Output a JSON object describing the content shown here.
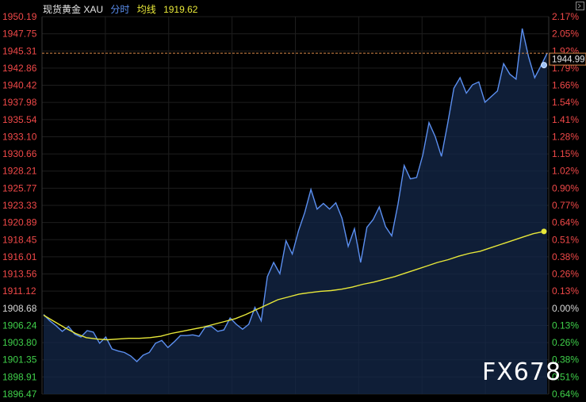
{
  "header": {
    "instrument": "现货黄金 XAU",
    "mode": "分时",
    "avg_label": "均线",
    "avg_value": "1919.62"
  },
  "watermark": "FX678",
  "price_tag": "1944.99",
  "colors": {
    "background": "#000000",
    "price_line": "#5b8ff0",
    "price_fill": "#14284a",
    "avg_line": "#e8e839",
    "up_text": "#f04848",
    "down_text": "#3fd04a",
    "neutral_text": "#d8d8d8",
    "grid": "#1e1e1e",
    "ref_line": "#d98a4a",
    "tag_text": "#e8e8e8"
  },
  "chart_data": {
    "type": "line",
    "y_ticks": [
      "1950.19",
      "1947.75",
      "1945.31",
      "1942.86",
      "1940.42",
      "1937.98",
      "1935.54",
      "1933.10",
      "1930.66",
      "1928.21",
      "1925.77",
      "1923.33",
      "1920.89",
      "1918.45",
      "1916.01",
      "1913.56",
      "1911.12",
      "1908.68",
      "1906.24",
      "1903.80",
      "1901.35",
      "1898.91",
      "1896.47"
    ],
    "pct_ticks": [
      "2.17%",
      "2.05%",
      "1.92%",
      "1.79%",
      "1.66%",
      "1.54%",
      "1.41%",
      "1.28%",
      "1.15%",
      "1.02%",
      "0.90%",
      "0.77%",
      "0.64%",
      "0.51%",
      "0.38%",
      "0.26%",
      "0.13%",
      "0.00%",
      "0.13%",
      "0.26%",
      "0.38%",
      "0.51%",
      "0.64%"
    ],
    "ylim": [
      1896.47,
      1950.19
    ],
    "reference": 1908.68,
    "last_price": 1944.99,
    "series": [
      {
        "values": [
          1907.8,
          1906.9,
          1906.2,
          1905.4,
          1906.1,
          1905.0,
          1904.6,
          1905.5,
          1905.3,
          1903.7,
          1904.6,
          1902.9,
          1902.6,
          1902.4,
          1901.9,
          1901.1,
          1902.0,
          1902.4,
          1903.7,
          1904.1,
          1903.1,
          1903.9,
          1904.8,
          1904.8,
          1904.9,
          1904.7,
          1906.0,
          1906.1,
          1905.4,
          1905.6,
          1907.3,
          1906.4,
          1905.7,
          1906.4,
          1908.8,
          1906.9,
          1913.2,
          1915.2,
          1913.6,
          1918.3,
          1916.4,
          1919.7,
          1922.3,
          1925.6,
          1922.8,
          1923.6,
          1922.8,
          1923.7,
          1921.5,
          1917.5,
          1920.0,
          1915.2,
          1920.2,
          1921.3,
          1923.1,
          1920.3,
          1919.0,
          1923.5,
          1929.0,
          1927.1,
          1927.3,
          1930.5,
          1935.1,
          1933.1,
          1930.3,
          1935.0,
          1940.0,
          1941.5,
          1939.3,
          1940.5,
          1940.9,
          1938.0,
          1938.8,
          1939.6,
          1943.5,
          1942.0,
          1941.3,
          1948.5,
          1944.5,
          1941.5,
          1943.2,
          1944.99
        ],
        "avg_values": [
          1907.7,
          1906.8,
          1905.9,
          1905.1,
          1904.5,
          1904.3,
          1904.2,
          1904.3,
          1904.4,
          1904.4,
          1904.5,
          1904.7,
          1905.1,
          1905.4,
          1905.7,
          1906.0,
          1906.4,
          1906.8,
          1907.2,
          1907.8,
          1908.5,
          1909.2,
          1909.9,
          1910.3,
          1910.7,
          1910.9,
          1911.1,
          1911.2,
          1911.4,
          1911.7,
          1912.1,
          1912.4,
          1912.8,
          1913.2,
          1913.7,
          1914.2,
          1914.7,
          1915.2,
          1915.6,
          1916.1,
          1916.5,
          1916.8,
          1917.3,
          1917.8,
          1918.3,
          1918.8,
          1919.3,
          1919.62
        ]
      }
    ]
  }
}
